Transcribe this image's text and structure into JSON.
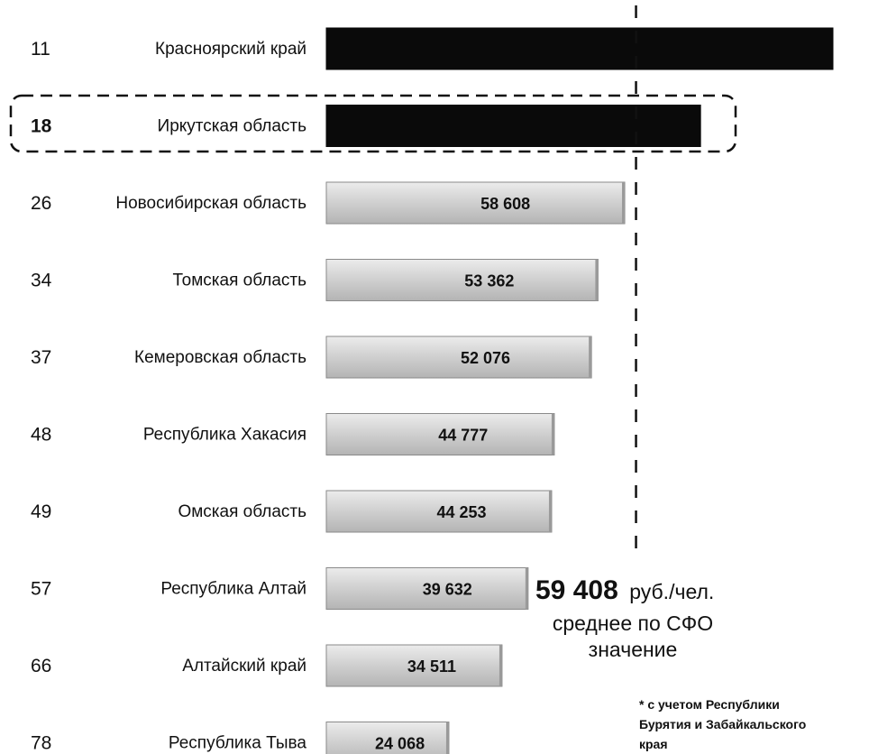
{
  "chart_data": {
    "type": "bar",
    "orientation": "horizontal",
    "title": "",
    "categories": [
      "Красноярский край",
      "Иркутская область",
      "Новосибирская область",
      "Томская область",
      "Кемеровская область",
      "Республика Хакасия",
      "Омская область",
      "Республика Алтай",
      "Алтайский край",
      "Республика Тыва"
    ],
    "ranks": [
      "11",
      "18",
      "26",
      "34",
      "37",
      "48",
      "49",
      "57",
      "66",
      "78"
    ],
    "values": [
      99500,
      73500,
      58608,
      53362,
      52076,
      44777,
      44253,
      39632,
      34511,
      24068
    ],
    "value_labels": [
      "",
      "",
      "58 608",
      "53 362",
      "52 076",
      "44 777",
      "44 253",
      "39 632",
      "34 511",
      "24 068"
    ],
    "highlight": [
      true,
      true,
      false,
      false,
      false,
      false,
      false,
      false,
      false,
      false
    ],
    "highlighted_box": "Иркутская область",
    "reference_line": {
      "value": 59408,
      "value_label": "59 408",
      "unit": "руб./чел.",
      "text_line1": "среднее по СФО",
      "text_line2": "значение"
    },
    "footnote_lines": [
      "* с учетом Республики",
      "Бурятия и Забайкальского",
      "края"
    ],
    "colors": {
      "highlight_bar": "#0a0a0a",
      "regular_bar": "#d4d4d4",
      "regular_bar_edge": "#8a8a8a"
    },
    "xlim": [
      0,
      100000
    ],
    "grid": false,
    "legend": "none"
  }
}
